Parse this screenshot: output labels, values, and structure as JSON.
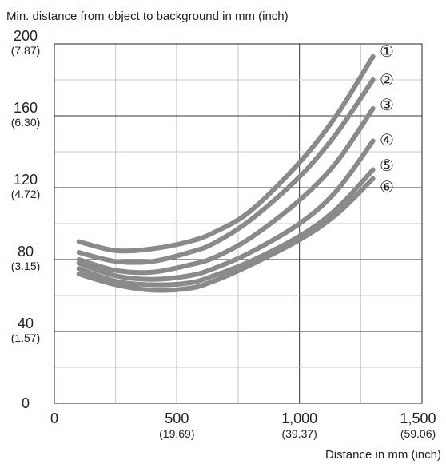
{
  "chart_data": {
    "type": "line",
    "title": "",
    "ylabel": "Min. distance from object to background in mm (inch)",
    "xlabel": "Distance in mm (inch)",
    "xlim": [
      0,
      1500
    ],
    "ylim": [
      0,
      200
    ],
    "grid": true,
    "legend": "none",
    "x_ticks": [
      {
        "value": 0,
        "label": "0",
        "sub": ""
      },
      {
        "value": 500,
        "label": "500",
        "sub": "(19.69)"
      },
      {
        "value": 1000,
        "label": "1,000",
        "sub": "(39.37)"
      },
      {
        "value": 1500,
        "label": "1,500",
        "sub": "(59.06)"
      }
    ],
    "y_ticks": [
      {
        "value": 0,
        "label": "0",
        "sub": ""
      },
      {
        "value": 40,
        "label": "40",
        "sub": "(1.57)"
      },
      {
        "value": 80,
        "label": "80",
        "sub": "(3.15)"
      },
      {
        "value": 120,
        "label": "120",
        "sub": "(4.72)"
      },
      {
        "value": 160,
        "label": "160",
        "sub": "(6.30)"
      },
      {
        "value": 200,
        "label": "200",
        "sub": "(7.87)"
      }
    ],
    "series_color": "#8a8a8a",
    "series": [
      {
        "label": "①",
        "x": [
          100,
          250,
          400,
          550,
          650,
          800,
          1000,
          1150,
          1300
        ],
        "y": [
          90,
          85,
          86,
          90,
          95,
          107,
          134,
          160,
          193
        ]
      },
      {
        "label": "②",
        "x": [
          100,
          250,
          400,
          550,
          650,
          800,
          1000,
          1150,
          1300
        ],
        "y": [
          84,
          79,
          79,
          84,
          89,
          102,
          126,
          150,
          180
        ]
      },
      {
        "label": "③",
        "x": [
          100,
          250,
          400,
          550,
          650,
          800,
          1000,
          1150,
          1300
        ],
        "y": [
          80,
          74,
          73,
          77,
          81,
          92,
          113,
          134,
          164
        ]
      },
      {
        "label": "④",
        "x": [
          100,
          250,
          400,
          550,
          650,
          800,
          1000,
          1150,
          1300
        ],
        "y": [
          78,
          71,
          69,
          71,
          75,
          84,
          100,
          118,
          146
        ]
      },
      {
        "label": "⑤",
        "x": [
          100,
          250,
          400,
          550,
          650,
          800,
          1000,
          1150,
          1300
        ],
        "y": [
          75,
          68,
          66,
          67,
          71,
          79,
          93,
          108,
          130
        ]
      },
      {
        "label": "⑥",
        "x": [
          100,
          250,
          400,
          550,
          650,
          800,
          1000,
          1150,
          1300
        ],
        "y": [
          72,
          66,
          63,
          64,
          68,
          77,
          91,
          105,
          125
        ]
      }
    ]
  }
}
